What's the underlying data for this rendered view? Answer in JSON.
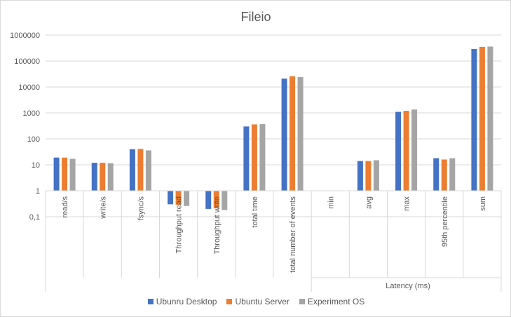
{
  "chart_data": {
    "type": "bar",
    "title": "Fileio",
    "y_scale": "log",
    "ylim": [
      0.1,
      1000000
    ],
    "y_tick_labels": [
      "0,1",
      "1",
      "10",
      "100",
      "1000",
      "10000",
      "100000",
      "1000000"
    ],
    "categories": [
      "read/s",
      "write/s",
      "fsync/s",
      "Throughput read",
      "Throughput write",
      "total time",
      "total number of events",
      "min",
      "avg",
      "max",
      "95th percentile",
      "sum"
    ],
    "group_label": {
      "text": "Latency (ms)",
      "start_index": 7
    },
    "series": [
      {
        "name": "Ubunru Desktop",
        "color": "#4472c4",
        "values": [
          19,
          12,
          40,
          0.3,
          0.2,
          300,
          21000,
          null,
          14,
          1100,
          18,
          290000
        ]
      },
      {
        "name": "Ubuntu Server",
        "color": "#ed7d31",
        "values": [
          19,
          12,
          41,
          0.29,
          0.21,
          360,
          26000,
          null,
          14,
          1200,
          16,
          350000
        ]
      },
      {
        "name": "Experiment OS",
        "color": "#a5a5a5",
        "values": [
          17,
          11.5,
          36,
          0.26,
          0.18,
          370,
          24000,
          null,
          15,
          1350,
          18,
          360000
        ]
      }
    ],
    "legend_position": "bottom",
    "grid": true
  }
}
